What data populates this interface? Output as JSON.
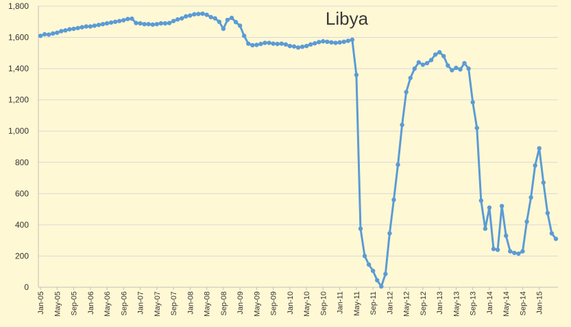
{
  "chart_data": {
    "type": "line",
    "title": "Libya",
    "xlabel": "",
    "ylabel": "",
    "ylim": [
      0,
      1800
    ],
    "y_ticks": [
      "0",
      "200",
      "400",
      "600",
      "800",
      "1,000",
      "1,200",
      "1,400",
      "1,600",
      "1,800"
    ],
    "y_tick_values": [
      0,
      200,
      400,
      600,
      800,
      1000,
      1200,
      1400,
      1600,
      1800
    ],
    "x_ticks": [
      "Jan-05",
      "May-05",
      "Sep-05",
      "Jan-06",
      "May-06",
      "Sep-06",
      "Jan-07",
      "May-07",
      "Sep-07",
      "Jan-08",
      "May-08",
      "Sep-08",
      "Jan-09",
      "May-09",
      "Sep-09",
      "Jan-10",
      "May-10",
      "Sep-10",
      "Jan-11",
      "May-11",
      "Sep-11",
      "Jan-12",
      "May-12",
      "Sep-12",
      "Jan-13",
      "May-13",
      "Sep-13",
      "Jan-14",
      "May-14",
      "Sep-14",
      "Jan-15"
    ],
    "grid": true,
    "legend": "none",
    "colors": {
      "line": "#5b9bd5",
      "grid": "#d9d9d9",
      "axis": "#bfbfbf",
      "background": "#fff8d4"
    },
    "series": [
      {
        "start": "Jan-05",
        "frequency": "monthly",
        "values": [
          1610,
          1620,
          1618,
          1625,
          1630,
          1640,
          1645,
          1652,
          1655,
          1660,
          1665,
          1670,
          1670,
          1675,
          1680,
          1685,
          1690,
          1695,
          1700,
          1705,
          1710,
          1718,
          1720,
          1692,
          1690,
          1685,
          1685,
          1682,
          1685,
          1690,
          1690,
          1692,
          1705,
          1715,
          1722,
          1735,
          1740,
          1748,
          1750,
          1752,
          1745,
          1730,
          1722,
          1700,
          1655,
          1712,
          1725,
          1698,
          1675,
          1610,
          1560,
          1550,
          1552,
          1558,
          1565,
          1565,
          1560,
          1558,
          1560,
          1555,
          1545,
          1542,
          1535,
          1540,
          1545,
          1555,
          1562,
          1570,
          1575,
          1572,
          1568,
          1565,
          1568,
          1572,
          1578,
          1585,
          1360,
          375,
          200,
          145,
          105,
          45,
          5,
          85,
          345,
          560,
          785,
          1040,
          1250,
          1340,
          1400,
          1440,
          1425,
          1435,
          1455,
          1490,
          1505,
          1480,
          1420,
          1390,
          1405,
          1395,
          1435,
          1400,
          1185,
          1020,
          555,
          375,
          510,
          245,
          240,
          520,
          330,
          230,
          220,
          215,
          230,
          420,
          575,
          780,
          890,
          670,
          475,
          345,
          310
        ]
      }
    ]
  }
}
